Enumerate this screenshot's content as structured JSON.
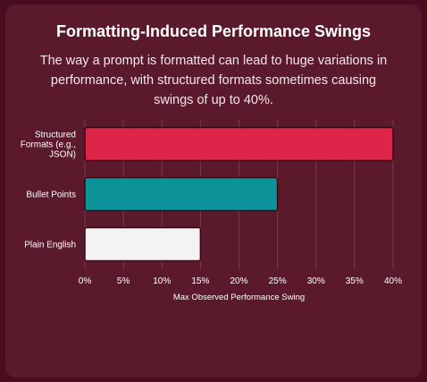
{
  "header": {
    "title": "Formatting-Induced Performance Swings",
    "subtitle": "The way a prompt is formatted can lead to huge variations in performance, with structured formats sometimes causing swings of up to 40%."
  },
  "colors": {
    "page_bg": "#4a0d1f",
    "card_bg": "#5a1a2b",
    "grid": "#7a3a4b",
    "text": "#ffffff"
  },
  "chart_data": {
    "type": "bar",
    "orientation": "horizontal",
    "categories": [
      "Structured Formats (e.g., JSON)",
      "Bullet Points",
      "Plain English"
    ],
    "category_lines": [
      [
        "Structured",
        "Formats (e.g.,",
        "JSON)"
      ],
      [
        "Bullet Points"
      ],
      [
        "Plain English"
      ]
    ],
    "values": [
      40,
      25,
      15
    ],
    "bar_colors": [
      "#dc2548",
      "#0b9399",
      "#f4f2f3"
    ],
    "xlabel": "Max Observed Performance Swing",
    "xlim": [
      0,
      40
    ],
    "xticks": [
      0,
      5,
      10,
      15,
      20,
      25,
      30,
      35,
      40
    ],
    "xtick_labels": [
      "0%",
      "5%",
      "10%",
      "15%",
      "20%",
      "25%",
      "30%",
      "35%",
      "40%"
    ],
    "grid": true,
    "legend": "none"
  }
}
